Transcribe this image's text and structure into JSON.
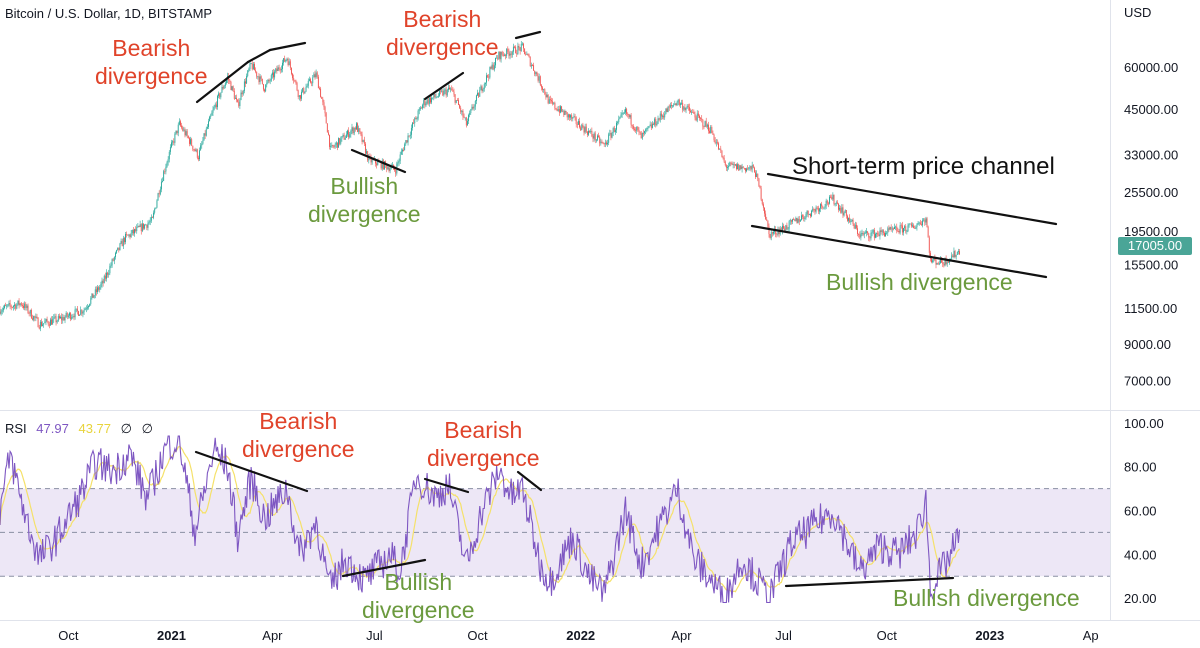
{
  "header": {
    "title": "Bitcoin / U.S. Dollar, 1D, BITSTAMP"
  },
  "rsi_legend": {
    "label": "RSI",
    "value1": "47.97",
    "value2": "43.77",
    "sym1": "∅",
    "sym2": "∅"
  },
  "last_price_tag": "17005.00",
  "colors": {
    "up": "#26a69a",
    "down": "#ef5350",
    "rsi": "#7e57c2",
    "rsi_ma": "#f5e16a",
    "band_fill": "#ede7f6",
    "bear_text": "#e0432a",
    "bull_text": "#6b9a3e"
  },
  "annotations": {
    "price_bear1": "Bearish\ndivergence",
    "price_bull1": "Bullish\ndivergence",
    "price_bear2": "Bearish\ndivergence",
    "channel": "Short-term price channel",
    "price_bull2": "Bullish divergence",
    "rsi_bear1": "Bearish\ndivergence",
    "rsi_bear2": "Bearish\ndivergence",
    "rsi_bull1": "Bullish\ndivergence",
    "rsi_bull2": "Bullish divergence"
  },
  "chart_data": [
    {
      "type": "candlestick",
      "title": "Bitcoin / U.S. Dollar, 1D, BITSTAMP",
      "ylabel": "USD",
      "scale": "log",
      "ylim": [
        5800,
        95000
      ],
      "y_ticks": [
        "60000.00",
        "45000.00",
        "33000.00",
        "25500.00",
        "19500.00",
        "15500.00",
        "11500.00",
        "9000.00",
        "7000.00"
      ],
      "x_ticks": [
        "Oct",
        "2021",
        "Apr",
        "Jul",
        "Oct",
        "2022",
        "Apr",
        "Jul",
        "Oct",
        "2023",
        "Ap"
      ],
      "x_range": [
        "2020-08-01",
        "2023-04-20"
      ],
      "last_price": 17005,
      "approx_close_path": [
        [
          "2020-08-01",
          11400
        ],
        [
          "2020-08-20",
          11900
        ],
        [
          "2020-09-05",
          10300
        ],
        [
          "2020-09-25",
          10700
        ],
        [
          "2020-10-15",
          11400
        ],
        [
          "2020-11-01",
          13700
        ],
        [
          "2020-11-20",
          18500
        ],
        [
          "2020-12-15",
          21000
        ],
        [
          "2021-01-08",
          40500
        ],
        [
          "2021-01-25",
          32500
        ],
        [
          "2021-02-20",
          56000
        ],
        [
          "2021-03-01",
          46000
        ],
        [
          "2021-03-13",
          61000
        ],
        [
          "2021-03-25",
          52000
        ],
        [
          "2021-04-14",
          64000
        ],
        [
          "2021-04-25",
          49000
        ],
        [
          "2021-05-10",
          57000
        ],
        [
          "2021-05-23",
          34000
        ],
        [
          "2021-06-15",
          40000
        ],
        [
          "2021-06-26",
          31700
        ],
        [
          "2021-07-20",
          29800
        ],
        [
          "2021-08-14",
          47000
        ],
        [
          "2021-09-07",
          51500
        ],
        [
          "2021-09-21",
          40500
        ],
        [
          "2021-10-20",
          65000
        ],
        [
          "2021-11-10",
          68500
        ],
        [
          "2021-11-26",
          54000
        ],
        [
          "2021-12-04",
          47000
        ],
        [
          "2022-01-22",
          35000
        ],
        [
          "2022-02-10",
          44000
        ],
        [
          "2022-02-24",
          37000
        ],
        [
          "2022-03-28",
          47500
        ],
        [
          "2022-04-27",
          39000
        ],
        [
          "2022-05-10",
          30500
        ],
        [
          "2022-06-05",
          29800
        ],
        [
          "2022-06-18",
          19000
        ],
        [
          "2022-07-05",
          20200
        ],
        [
          "2022-08-14",
          24300
        ],
        [
          "2022-09-07",
          19000
        ],
        [
          "2022-09-25",
          19200
        ],
        [
          "2022-10-25",
          20100
        ],
        [
          "2022-11-05",
          21300
        ],
        [
          "2022-11-09",
          15900
        ],
        [
          "2022-11-21",
          15800
        ],
        [
          "2022-12-05",
          17005
        ]
      ]
    },
    {
      "type": "line",
      "title": "RSI",
      "ylim": [
        10,
        105
      ],
      "y_ticks": [
        "100.00",
        "80.00",
        "60.00",
        "40.00",
        "20.00"
      ],
      "bands": [
        30,
        50,
        70
      ],
      "series": [
        {
          "name": "RSI",
          "values_by_date": [
            [
              "2020-08-01",
              60
            ],
            [
              "2020-08-10",
              85
            ],
            [
              "2020-08-25",
              55
            ],
            [
              "2020-09-05",
              38
            ],
            [
              "2020-09-20",
              47
            ],
            [
              "2020-10-10",
              65
            ],
            [
              "2020-10-25",
              82
            ],
            [
              "2020-11-10",
              78
            ],
            [
              "2020-11-25",
              86
            ],
            [
              "2020-12-10",
              65
            ],
            [
              "2020-12-28",
              90
            ],
            [
              "2021-01-08",
              92
            ],
            [
              "2021-01-22",
              50
            ],
            [
              "2021-02-08",
              88
            ],
            [
              "2021-02-20",
              80
            ],
            [
              "2021-03-01",
              48
            ],
            [
              "2021-03-13",
              75
            ],
            [
              "2021-03-25",
              56
            ],
            [
              "2021-04-14",
              70
            ],
            [
              "2021-04-25",
              40
            ],
            [
              "2021-05-10",
              55
            ],
            [
              "2021-05-22",
              24
            ],
            [
              "2021-06-05",
              38
            ],
            [
              "2021-06-22",
              28
            ],
            [
              "2021-07-15",
              40
            ],
            [
              "2021-07-24",
              32
            ],
            [
              "2021-08-07",
              76
            ],
            [
              "2021-08-25",
              66
            ],
            [
              "2021-09-05",
              72
            ],
            [
              "2021-09-21",
              35
            ],
            [
              "2021-10-05",
              60
            ],
            [
              "2021-10-20",
              78
            ],
            [
              "2021-11-01",
              66
            ],
            [
              "2021-11-10",
              70
            ],
            [
              "2021-11-26",
              35
            ],
            [
              "2021-12-05",
              28
            ],
            [
              "2021-12-25",
              48
            ],
            [
              "2022-01-08",
              30
            ],
            [
              "2022-01-22",
              22
            ],
            [
              "2022-02-10",
              60
            ],
            [
              "2022-02-24",
              35
            ],
            [
              "2022-03-28",
              70
            ],
            [
              "2022-04-12",
              38
            ],
            [
              "2022-05-10",
              20
            ],
            [
              "2022-05-25",
              38
            ],
            [
              "2022-06-18",
              20
            ],
            [
              "2022-07-08",
              45
            ],
            [
              "2022-08-14",
              60
            ],
            [
              "2022-09-07",
              32
            ],
            [
              "2022-09-25",
              44
            ],
            [
              "2022-10-12",
              40
            ],
            [
              "2022-10-28",
              50
            ],
            [
              "2022-11-05",
              65
            ],
            [
              "2022-11-09",
              24
            ],
            [
              "2022-11-21",
              34
            ],
            [
              "2022-12-05",
              48
            ]
          ]
        },
        {
          "name": "RSI MA",
          "smoothed_of": "RSI"
        }
      ]
    }
  ]
}
